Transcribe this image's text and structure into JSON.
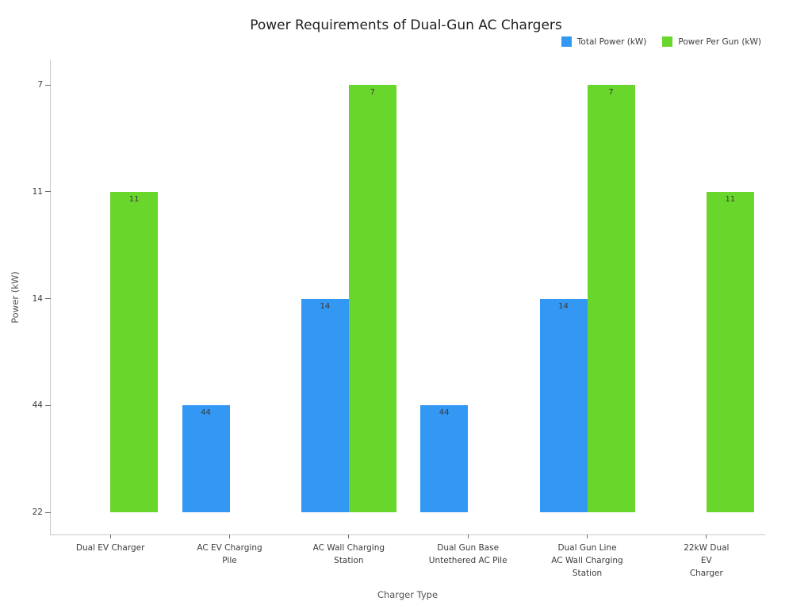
{
  "chart_data": {
    "type": "bar",
    "title": "Power Requirements of Dual-Gun AC Chargers",
    "xlabel": "Charger Type",
    "ylabel": "Power (kW)",
    "categories": [
      "Dual EV Charger",
      "AC EV Charging\nPile",
      "AC Wall Charging\nStation",
      "Dual Gun Base\nUntethered AC Pile",
      "Dual Gun Line\nAC Wall Charging\nStation",
      "22kW Dual EV\nCharger"
    ],
    "y_axis_type": "categorical",
    "y_tick_labels_bottom_to_top": [
      "22",
      "44",
      "14",
      "11",
      "7"
    ],
    "series": [
      {
        "name": "Total Power (kW)",
        "color": "#3398f3",
        "values": [
          null,
          44,
          14,
          44,
          14,
          null
        ],
        "levels": [
          0,
          1,
          2,
          1,
          2,
          0
        ]
      },
      {
        "name": "Power Per Gun (kW)",
        "color": "#69d62c",
        "values": [
          11,
          null,
          7,
          null,
          7,
          11
        ],
        "levels": [
          3,
          0,
          4,
          0,
          4,
          3
        ]
      }
    ],
    "bar_label_color": "#3a3a3a",
    "legend_position": "top-right",
    "grid": false
  }
}
